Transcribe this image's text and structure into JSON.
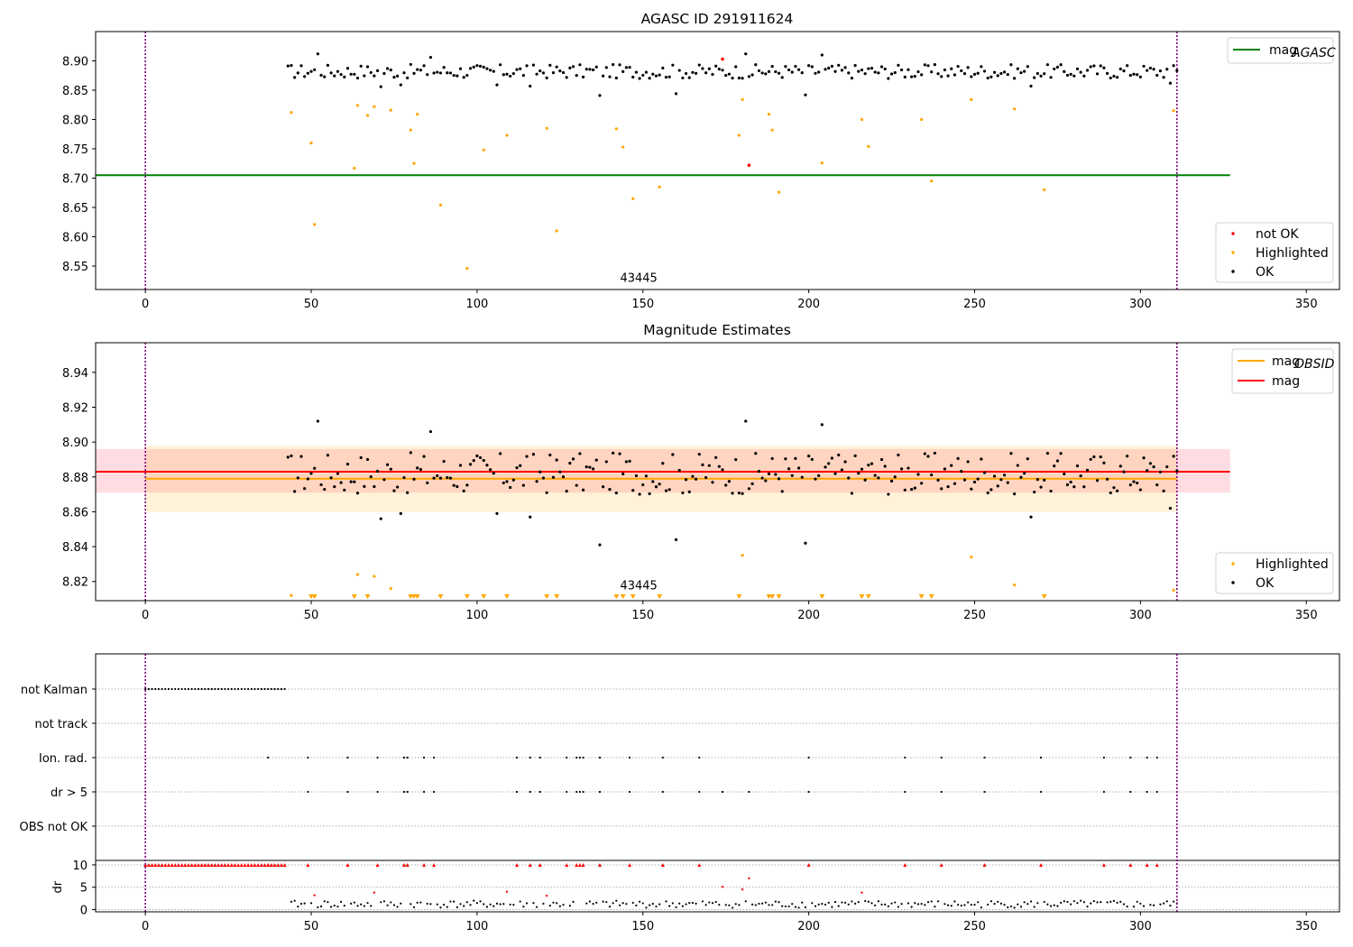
{
  "colors": {
    "ok": "#000000",
    "highlighted": "#ffa500",
    "not_ok": "#ff0000",
    "agasc_line": "#008000",
    "obsid_line": "#ffa500",
    "mag_line": "#ff0000",
    "vline": "#800080",
    "grid": "#b0b0b0"
  },
  "chart_data": [
    {
      "type": "scatter",
      "title": "AGASC ID 291911624",
      "xlim": [
        -15,
        360
      ],
      "ylim": [
        8.51,
        8.95
      ],
      "xticks": [
        0,
        50,
        100,
        150,
        200,
        250,
        300,
        350
      ],
      "xtick_labels": [
        "0",
        "50",
        "100",
        "150",
        "200",
        "250",
        "300",
        "350"
      ],
      "yticks": [
        8.55,
        8.6,
        8.65,
        8.7,
        8.75,
        8.8,
        8.85,
        8.9
      ],
      "ytick_labels": [
        "8.55",
        "8.60",
        "8.65",
        "8.70",
        "8.75",
        "8.80",
        "8.85",
        "8.90"
      ],
      "vlines": [
        0,
        311
      ],
      "annotation": {
        "text": "43445",
        "x": 155,
        "y": 8.523
      },
      "hline": {
        "name": "mag_AGASC",
        "label_main": "mag",
        "label_sub": "AGASC",
        "y": 8.705,
        "x": [
          -15,
          327
        ]
      },
      "legend_lines": [
        {
          "label_main": "mag",
          "label_sub": "AGASC"
        }
      ],
      "legend_points": [
        {
          "label": "not OK"
        },
        {
          "label": "Highlighted"
        },
        {
          "label": "OK"
        }
      ],
      "ok_baseline": 8.882,
      "ok_jitter_amplitude": 0.012,
      "ok_x_start": 43,
      "ok_x_end": 311,
      "ok_x_step": 1,
      "ok_outliers": [
        {
          "x": 52,
          "y": 8.912
        },
        {
          "x": 71,
          "y": 8.856
        },
        {
          "x": 77,
          "y": 8.859
        },
        {
          "x": 86,
          "y": 8.906
        },
        {
          "x": 106,
          "y": 8.859
        },
        {
          "x": 116,
          "y": 8.857
        },
        {
          "x": 137,
          "y": 8.841
        },
        {
          "x": 160,
          "y": 8.844
        },
        {
          "x": 181,
          "y": 8.912
        },
        {
          "x": 199,
          "y": 8.842
        },
        {
          "x": 204,
          "y": 8.91
        },
        {
          "x": 267,
          "y": 8.857
        },
        {
          "x": 309,
          "y": 8.862
        }
      ],
      "highlighted": [
        {
          "x": 44,
          "y": 8.812
        },
        {
          "x": 50,
          "y": 8.76
        },
        {
          "x": 51,
          "y": 8.621
        },
        {
          "x": 63,
          "y": 8.717
        },
        {
          "x": 64,
          "y": 8.824
        },
        {
          "x": 67,
          "y": 8.807
        },
        {
          "x": 69,
          "y": 8.822
        },
        {
          "x": 74,
          "y": 8.816
        },
        {
          "x": 80,
          "y": 8.782
        },
        {
          "x": 81,
          "y": 8.725
        },
        {
          "x": 82,
          "y": 8.809
        },
        {
          "x": 89,
          "y": 8.654
        },
        {
          "x": 97,
          "y": 8.546
        },
        {
          "x": 102,
          "y": 8.748
        },
        {
          "x": 109,
          "y": 8.773
        },
        {
          "x": 121,
          "y": 8.785
        },
        {
          "x": 124,
          "y": 8.61
        },
        {
          "x": 142,
          "y": 8.784
        },
        {
          "x": 144,
          "y": 8.753
        },
        {
          "x": 147,
          "y": 8.665
        },
        {
          "x": 155,
          "y": 8.685
        },
        {
          "x": 179,
          "y": 8.773
        },
        {
          "x": 180,
          "y": 8.834
        },
        {
          "x": 188,
          "y": 8.809
        },
        {
          "x": 189,
          "y": 8.782
        },
        {
          "x": 191,
          "y": 8.676
        },
        {
          "x": 204,
          "y": 8.726
        },
        {
          "x": 216,
          "y": 8.8
        },
        {
          "x": 218,
          "y": 8.754
        },
        {
          "x": 234,
          "y": 8.8
        },
        {
          "x": 237,
          "y": 8.695
        },
        {
          "x": 249,
          "y": 8.834
        },
        {
          "x": 262,
          "y": 8.818
        },
        {
          "x": 271,
          "y": 8.68
        },
        {
          "x": 310,
          "y": 8.815
        }
      ],
      "not_ok": [
        {
          "x": 174,
          "y": 8.903
        },
        {
          "x": 182,
          "y": 8.722
        }
      ]
    },
    {
      "type": "scatter",
      "title": "Magnitude Estimates",
      "xlim": [
        -15,
        360
      ],
      "ylim": [
        8.809,
        8.957
      ],
      "xticks": [
        0,
        50,
        100,
        150,
        200,
        250,
        300,
        350
      ],
      "xtick_labels": [
        "0",
        "50",
        "100",
        "150",
        "200",
        "250",
        "300",
        "350"
      ],
      "yticks": [
        8.82,
        8.84,
        8.86,
        8.88,
        8.9,
        8.92,
        8.94
      ],
      "ytick_labels": [
        "8.82",
        "8.84",
        "8.86",
        "8.88",
        "8.90",
        "8.92",
        "8.94"
      ],
      "vlines": [
        0,
        311
      ],
      "annotation": {
        "text": "43445",
        "x": 155,
        "y": 8.8155
      },
      "bands": [
        {
          "name": "mag_band",
          "y_low": 8.871,
          "y_high": 8.896,
          "x": [
            -15,
            327
          ],
          "color": "#ffc0cb",
          "opacity": 0.55
        },
        {
          "name": "obsid_band",
          "y_low": 8.86,
          "y_high": 8.898,
          "x": [
            0,
            311
          ],
          "color": "#ffa500",
          "opacity": 0.15
        }
      ],
      "lines": [
        {
          "name": "mag",
          "y": 8.883,
          "x": [
            -15,
            327
          ]
        },
        {
          "name": "mag_OBSID",
          "y": 8.879,
          "x": [
            0,
            311
          ]
        }
      ],
      "legend_lines": [
        {
          "label_main": "mag",
          "label_sub": "OBSID"
        },
        {
          "label_main": "mag",
          "label_sub": ""
        }
      ],
      "legend_points": [
        {
          "label": "Highlighted"
        },
        {
          "label": "OK"
        }
      ],
      "highlighted_points": [
        {
          "x": 64,
          "y": 8.824
        },
        {
          "x": 69,
          "y": 8.823
        },
        {
          "x": 74,
          "y": 8.816
        },
        {
          "x": 180,
          "y": 8.835
        },
        {
          "x": 249,
          "y": 8.834
        },
        {
          "x": 262,
          "y": 8.818
        },
        {
          "x": 310,
          "y": 8.815
        },
        {
          "x": 44,
          "y": 8.812
        }
      ],
      "highlighted_offscale_x": [
        50,
        51,
        63,
        67,
        80,
        81,
        82,
        89,
        97,
        102,
        109,
        121,
        124,
        142,
        144,
        147,
        155,
        179,
        188,
        189,
        191,
        204,
        216,
        218,
        234,
        237,
        271
      ]
    },
    {
      "type": "scatter",
      "title": "",
      "xlim": [
        -15,
        360
      ],
      "xticks": [
        0,
        50,
        100,
        150,
        200,
        250,
        300,
        350
      ],
      "xtick_labels": [
        "0",
        "50",
        "100",
        "150",
        "200",
        "250",
        "300",
        "350"
      ],
      "vlines": [
        0,
        311
      ],
      "flag_rows": [
        "not Kalman",
        "not track",
        "Ion. rad.",
        "dr > 5",
        "OBS not OK"
      ],
      "flags": {
        "not_kalman": {
          "x_start": 0,
          "x_end": 42
        },
        "not_track": [],
        "ion_rad": [
          37,
          49,
          61,
          70,
          78,
          79,
          84,
          87,
          112,
          116,
          119,
          127,
          130,
          131,
          132,
          137,
          146,
          156,
          167,
          200,
          229,
          240,
          253,
          270,
          289,
          297,
          302,
          305
        ],
        "dr_gt_5": [
          49,
          61,
          70,
          78,
          79,
          84,
          87,
          112,
          116,
          119,
          127,
          130,
          131,
          132,
          137,
          146,
          156,
          167,
          174,
          182,
          200,
          229,
          240,
          253,
          270,
          289,
          297,
          302,
          305
        ],
        "obs_not_ok": []
      },
      "dr": {
        "ylabel": "dr",
        "ylim": [
          -0.5,
          11
        ],
        "yticks": [
          0,
          5,
          10
        ],
        "ytick_labels": [
          "0",
          "5",
          "10"
        ],
        "clip": 10,
        "capped_x": [
          37,
          49,
          61,
          70,
          78,
          79,
          84,
          87,
          112,
          116,
          119,
          127,
          130,
          131,
          132,
          137,
          146,
          156,
          167,
          200,
          229,
          240,
          253,
          270,
          289,
          297,
          302,
          305
        ],
        "red_points": [
          {
            "x": 51,
            "y": 3.2
          },
          {
            "x": 69,
            "y": 3.8
          },
          {
            "x": 109,
            "y": 4.0
          },
          {
            "x": 121,
            "y": 3.1
          },
          {
            "x": 174,
            "y": 5.1
          },
          {
            "x": 180,
            "y": 4.5
          },
          {
            "x": 182,
            "y": 7.0
          },
          {
            "x": 216,
            "y": 3.8
          }
        ],
        "typical": 1.2
      }
    }
  ]
}
